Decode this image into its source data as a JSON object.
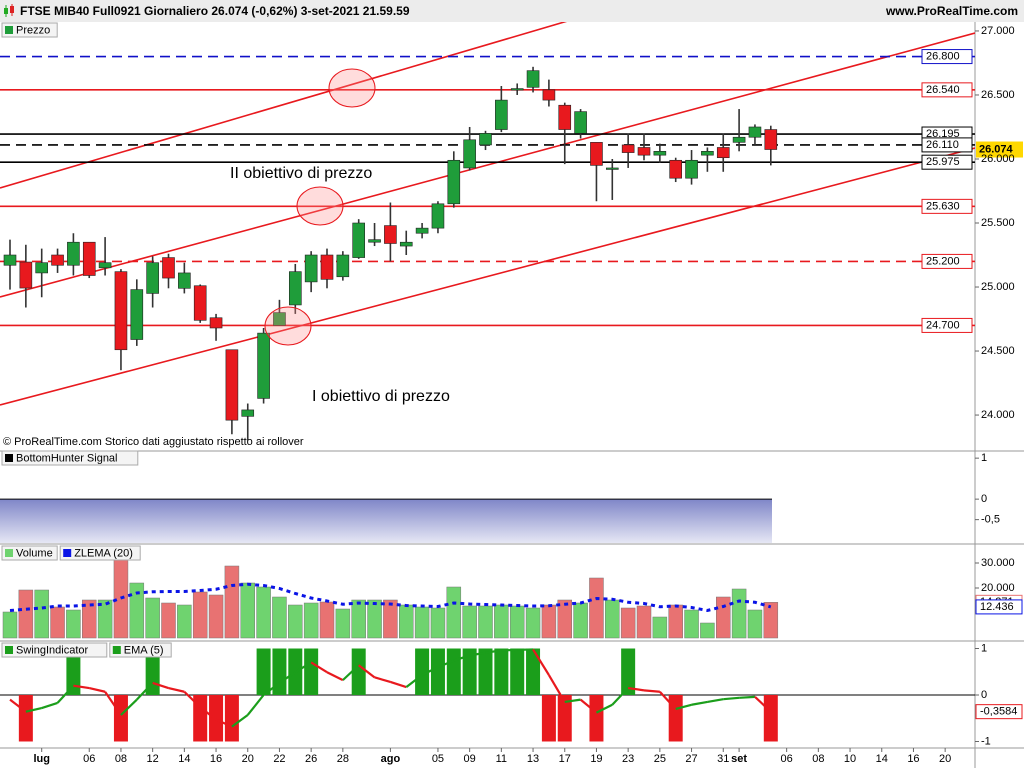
{
  "chart_data": [
    {
      "type": "candlestick",
      "title": "FTSE MIB40 Full0921 Giornaliero 26.074 (-0,62%) 3-set-2021 21.59.59",
      "source": "www.ProRealTime.com",
      "note": "© ProRealTime.com  Storico dati aggiustato rispetto ai rollover",
      "annotations": [
        "II obiettivo di prezzo",
        "I obiettivo di prezzo"
      ],
      "categories": [
        null,
        null,
        "lug",
        null,
        null,
        "06",
        null,
        "08",
        null,
        "12",
        null,
        "14",
        null,
        "16",
        null,
        "20",
        null,
        "22",
        null,
        "26",
        null,
        "28",
        null,
        null,
        "ago",
        null,
        null,
        "05",
        null,
        "09",
        null,
        "11",
        null,
        "13",
        null,
        "17",
        null,
        "19",
        null,
        "23",
        null,
        "25",
        null,
        "27",
        null,
        "31",
        "set",
        null,
        null,
        "06",
        null,
        "08",
        null,
        "10",
        null,
        "14",
        null,
        "16",
        null,
        "20"
      ],
      "series": [
        {
          "name": "Prezzo",
          "up_color": "#1f9d3a",
          "down_color": "#e8191e",
          "open": [
            25170,
            25195,
            25110,
            25250,
            25170,
            25350,
            25150,
            25120,
            24590,
            24950,
            25230,
            24990,
            25010,
            24760,
            24510,
            23990,
            24130,
            24700,
            24860,
            25040,
            25250,
            25080,
            25230,
            25350,
            25480,
            25320,
            25420,
            25460,
            25650,
            25930,
            26110,
            26230,
            26540,
            26560,
            26540,
            26420,
            26200,
            26130,
            25920,
            26110,
            26090,
            26030,
            25990,
            25850,
            26030,
            26090,
            26130,
            26170,
            26230,
            null,
            null,
            null,
            null,
            null,
            null,
            null,
            null,
            null,
            null,
            null
          ],
          "high": [
            25370,
            25330,
            25300,
            25300,
            25420,
            25350,
            25390,
            25140,
            25060,
            25240,
            25260,
            25190,
            25020,
            24790,
            24510,
            24090,
            24680,
            24900,
            25180,
            25280,
            25300,
            25280,
            25530,
            25500,
            25660,
            25440,
            25500,
            25670,
            26060,
            26250,
            26220,
            26570,
            26590,
            26720,
            26620,
            26440,
            26390,
            26130,
            26000,
            26200,
            26200,
            26120,
            26010,
            26070,
            26090,
            26200,
            26390,
            26270,
            26260,
            null,
            null,
            null,
            null,
            null,
            null,
            null,
            null,
            null,
            null,
            null
          ],
          "low": [
            24980,
            24840,
            24920,
            25110,
            25090,
            25070,
            25090,
            24350,
            24540,
            24840,
            24990,
            24950,
            24720,
            24580,
            23850,
            23800,
            24090,
            24700,
            24790,
            24960,
            24990,
            25050,
            25220,
            25320,
            25200,
            25250,
            25380,
            25420,
            25620,
            25910,
            26070,
            26210,
            26500,
            26520,
            26410,
            25960,
            26160,
            25670,
            25680,
            25930,
            25990,
            25970,
            25820,
            25800,
            25900,
            25900,
            26060,
            26110,
            25950,
            null,
            null,
            null,
            null,
            null,
            null,
            null,
            null,
            null,
            null,
            null
          ],
          "close": [
            25250,
            24992,
            25190,
            25170,
            25350,
            25090,
            25190,
            24510,
            24980,
            25190,
            25070,
            25110,
            24740,
            24680,
            23960,
            24040,
            24640,
            24800,
            25120,
            25250,
            25060,
            25250,
            25500,
            25370,
            25340,
            25350,
            25460,
            25650,
            25990,
            26150,
            26200,
            26460,
            26550,
            26690,
            26460,
            26230,
            26370,
            25950,
            25930,
            26050,
            26030,
            26060,
            25850,
            25990,
            26060,
            26010,
            26170,
            26250,
            26074,
            null,
            null,
            null,
            null,
            null,
            null,
            null,
            null,
            null,
            null,
            null
          ]
        }
      ],
      "last_label": {
        "value": 26074,
        "label": "26.074"
      },
      "levels": [
        {
          "value": 26800,
          "label": "26.800",
          "color": "#1010c8",
          "dashed": true
        },
        {
          "value": 26540,
          "label": "26.540",
          "color": "#e8191e",
          "dashed": false
        },
        {
          "value": 26195,
          "label": "26.195",
          "color": "#000000",
          "dashed": false
        },
        {
          "value": 26110,
          "label": "26.110",
          "color": "#000000",
          "dashed": true
        },
        {
          "value": 25975,
          "label": "25.975",
          "color": "#000000",
          "dashed": false
        },
        {
          "value": 25630,
          "label": "25.630",
          "color": "#e8191e",
          "dashed": false
        },
        {
          "value": 25200,
          "label": "25.200",
          "color": "#e8191e",
          "dashed": true
        },
        {
          "value": 24700,
          "label": "24.700",
          "color": "#e8191e",
          "dashed": false
        }
      ],
      "ylim": [
        23727,
        27070
      ],
      "yticks": [
        {
          "value": 24000,
          "label": "24.000"
        },
        {
          "value": 24500,
          "label": "24.500"
        },
        {
          "value": 25000,
          "label": "25.000"
        },
        {
          "value": 25500,
          "label": "25.500"
        },
        {
          "value": 26000,
          "label": "26.000"
        },
        {
          "value": 26500,
          "label": "26.500"
        },
        {
          "value": 27000,
          "label": "27.000"
        }
      ]
    },
    {
      "type": "area",
      "series": [
        {
          "name": "BottomHunter Signal",
          "color": "#000000"
        }
      ],
      "ylim": [
        -1.07,
        1.15
      ],
      "yticks": [
        1,
        0,
        {
          "value": -0.5,
          "label": "-0,5"
        }
      ]
    },
    {
      "type": "bar",
      "series": [
        {
          "name": "Volume",
          "type": "bar",
          "up_color": "#6fd36f",
          "down_color": "#e87272",
          "values": [
            10400,
            19200,
            19200,
            12400,
            11200,
            15200,
            15200,
            31200,
            22000,
            16000,
            14000,
            13200,
            18400,
            17200,
            28800,
            22000,
            20400,
            16400,
            13200,
            14000,
            14400,
            11600,
            15200,
            15200,
            15200,
            13200,
            12400,
            12000,
            20400,
            12800,
            12800,
            13200,
            12800,
            12000,
            13200,
            15200,
            14000,
            24000,
            15200,
            12000,
            12800,
            8400,
            13200,
            11200,
            6000,
            16400,
            19600,
            11200,
            14271
          ],
          "last_label": {
            "value": 14271,
            "label": "14.271"
          }
        },
        {
          "name": "ZLEMA (20)",
          "type": "line",
          "color": "#0a14e6",
          "values": [
            11000,
            11500,
            12000,
            12800,
            12800,
            13200,
            13500,
            16000,
            18000,
            18500,
            18600,
            18600,
            19000,
            19500,
            21000,
            21500,
            21000,
            19800,
            17800,
            16000,
            14800,
            13500,
            14000,
            13800,
            13600,
            13000,
            12800,
            12600,
            14000,
            13600,
            13400,
            13200,
            13000,
            12800,
            12900,
            13500,
            14000,
            15800,
            15500,
            14300,
            13800,
            12500,
            12800,
            12200,
            11000,
            12600,
            14800,
            14300,
            12436
          ],
          "last_label": {
            "value": 12436,
            "label": "12.436"
          }
        }
      ],
      "ylim": [
        -800,
        37200
      ],
      "yticks": [
        {
          "value": 20000,
          "label": "20.000"
        },
        {
          "value": 30000,
          "label": "30.000"
        }
      ]
    },
    {
      "type": "bar",
      "series": [
        {
          "name": "SwingIndicator",
          "type": "bar",
          "up_color": "#1b9e1b",
          "down_color": "#e8191e",
          "values": [
            0,
            -1,
            0,
            0,
            1,
            0,
            0,
            -1,
            0,
            1,
            0,
            0,
            -1,
            -1,
            -1,
            0,
            1,
            1,
            1,
            1,
            0,
            0,
            1,
            0,
            0,
            0,
            1,
            1,
            1,
            1,
            1,
            1,
            1,
            1,
            -1,
            -1,
            0,
            -1,
            0,
            1,
            0,
            0,
            -1,
            0,
            0,
            0,
            0,
            0,
            -1
          ]
        },
        {
          "name": "EMA (5)",
          "type": "line",
          "up_color": "#1b9e1b",
          "down_color": "#e8191e",
          "values": [
            -0.1,
            -0.36,
            -0.28,
            -0.17,
            0.2,
            0.15,
            0.07,
            -0.43,
            -0.1,
            0.26,
            0.15,
            0.07,
            -0.26,
            -0.53,
            -0.68,
            -0.43,
            0,
            0.26,
            0.49,
            0.7,
            0.49,
            0.32,
            0.64,
            0.38,
            0.28,
            0.17,
            0.43,
            0.6,
            0.74,
            0.85,
            0.91,
            0.96,
            0.97,
            0.98,
            0.43,
            -0.15,
            -0.1,
            -0.38,
            -0.21,
            0.15,
            0.1,
            0.07,
            -0.3,
            -0.21,
            -0.15,
            -0.09,
            -0.06,
            -0.04,
            -0.3584
          ],
          "last_label": {
            "value": -0.3584,
            "label": "-0,3584"
          }
        }
      ],
      "ylim": [
        -1.14,
        1.14
      ],
      "yticks": [
        1,
        0,
        -1
      ]
    }
  ]
}
